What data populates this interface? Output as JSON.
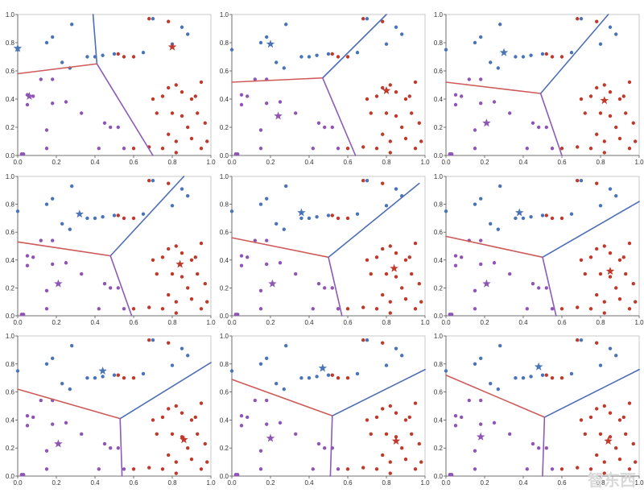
{
  "colors": {
    "blue": "#4a74b8",
    "red": "#c0392b",
    "purple": "#8e55b5",
    "boundary_red": "#cf5a5a",
    "boundary_blue": "#4e6fb5",
    "boundary_purple": "#8c5bb6",
    "axis": "#555555",
    "frame": "#bbbbbb"
  },
  "chart_data": {
    "type": "scatter",
    "grid": false,
    "xlim": [
      0,
      1
    ],
    "ylim": [
      0,
      1
    ],
    "xticks": [
      "0.0",
      "0.2",
      "0.4",
      "0.6",
      "0.8",
      "1.0"
    ],
    "yticks": [
      "0.0",
      "0.2",
      "0.4",
      "0.6",
      "0.8",
      "1.0"
    ],
    "points": {
      "blue": [
        [
          0.0,
          0.75
        ],
        [
          0.15,
          0.8
        ],
        [
          0.18,
          0.84
        ],
        [
          0.28,
          0.93
        ],
        [
          0.23,
          0.66
        ],
        [
          0.27,
          0.62
        ],
        [
          0.36,
          0.7
        ],
        [
          0.4,
          0.7
        ],
        [
          0.44,
          0.71
        ],
        [
          0.5,
          0.72
        ],
        [
          0.65,
          0.73
        ],
        [
          0.7,
          0.97
        ],
        [
          0.8,
          0.79
        ],
        [
          0.85,
          0.91
        ],
        [
          0.88,
          0.86
        ]
      ],
      "red": [
        [
          0.52,
          0.72
        ],
        [
          0.55,
          0.7
        ],
        [
          0.6,
          0.7
        ],
        [
          0.68,
          0.97
        ],
        [
          0.78,
          0.95
        ],
        [
          0.7,
          0.4
        ],
        [
          0.75,
          0.42
        ],
        [
          0.72,
          0.3
        ],
        [
          0.78,
          0.48
        ],
        [
          0.82,
          0.5
        ],
        [
          0.85,
          0.45
        ],
        [
          0.9,
          0.4
        ],
        [
          0.92,
          0.42
        ],
        [
          0.95,
          0.52
        ],
        [
          0.8,
          0.3
        ],
        [
          0.85,
          0.28
        ],
        [
          0.93,
          0.3
        ],
        [
          0.97,
          0.23
        ],
        [
          0.88,
          0.2
        ],
        [
          0.78,
          0.15
        ],
        [
          0.82,
          0.1
        ],
        [
          0.9,
          0.12
        ],
        [
          0.75,
          0.05
        ],
        [
          0.82,
          0.02
        ],
        [
          0.68,
          0.06
        ],
        [
          0.6,
          0.05
        ],
        [
          0.95,
          0.05
        ],
        [
          0.98,
          0.1
        ]
      ],
      "purple": [
        [
          0.02,
          0.01
        ],
        [
          0.03,
          0.01
        ],
        [
          0.05,
          0.43
        ],
        [
          0.08,
          0.42
        ],
        [
          0.05,
          0.36
        ],
        [
          0.12,
          0.54
        ],
        [
          0.18,
          0.54
        ],
        [
          0.18,
          0.37
        ],
        [
          0.15,
          0.18
        ],
        [
          0.25,
          0.38
        ],
        [
          0.45,
          0.23
        ],
        [
          0.48,
          0.2
        ],
        [
          0.52,
          0.2
        ],
        [
          0.15,
          0.05
        ],
        [
          0.33,
          0.3
        ],
        [
          0.42,
          0.05
        ],
        [
          0.55,
          0.05
        ]
      ]
    },
    "panels": [
      {
        "centroids": {
          "blue": [
            0.0,
            0.76
          ],
          "red": [
            0.8,
            0.77
          ],
          "purple": [
            0.06,
            0.42
          ]
        },
        "vertex": [
          0.41,
          0.65
        ],
        "ends": {
          "red": [
            0.0,
            0.58
          ],
          "blue": [
            0.39,
            1.0
          ],
          "purple": [
            0.7,
            0.0
          ]
        }
      },
      {
        "centroids": {
          "blue": [
            0.2,
            0.79
          ],
          "red": [
            0.8,
            0.46
          ],
          "purple": [
            0.24,
            0.28
          ]
        },
        "vertex": [
          0.47,
          0.55
        ],
        "ends": {
          "red": [
            0.0,
            0.52
          ],
          "blue": [
            0.8,
            1.0
          ],
          "purple": [
            0.64,
            0.0
          ]
        }
      },
      {
        "centroids": {
          "blue": [
            0.3,
            0.73
          ],
          "red": [
            0.82,
            0.39
          ],
          "purple": [
            0.21,
            0.23
          ]
        },
        "vertex": [
          0.49,
          0.44
        ],
        "ends": {
          "red": [
            0.0,
            0.52
          ],
          "blue": [
            0.84,
            1.0
          ],
          "purple": [
            0.6,
            0.0
          ]
        }
      },
      {
        "centroids": {
          "blue": [
            0.32,
            0.73
          ],
          "red": [
            0.84,
            0.37
          ],
          "purple": [
            0.21,
            0.23
          ]
        },
        "vertex": [
          0.48,
          0.43
        ],
        "ends": {
          "red": [
            0.0,
            0.53
          ],
          "blue": [
            0.86,
            1.0
          ],
          "purple": [
            0.59,
            0.0
          ]
        }
      },
      {
        "centroids": {
          "blue": [
            0.36,
            0.74
          ],
          "red": [
            0.84,
            0.34
          ],
          "purple": [
            0.21,
            0.23
          ]
        },
        "vertex": [
          0.5,
          0.42
        ],
        "ends": {
          "red": [
            0.0,
            0.56
          ],
          "blue": [
            0.97,
            0.95
          ],
          "purple": [
            0.57,
            0.0
          ]
        }
      },
      {
        "centroids": {
          "blue": [
            0.38,
            0.74
          ],
          "red": [
            0.85,
            0.32
          ],
          "purple": [
            0.21,
            0.23
          ]
        },
        "vertex": [
          0.5,
          0.42
        ],
        "ends": {
          "red": [
            0.0,
            0.57
          ],
          "blue": [
            1.0,
            0.82
          ],
          "purple": [
            0.57,
            0.0
          ]
        }
      },
      {
        "centroids": {
          "blue": [
            0.44,
            0.75
          ],
          "red": [
            0.86,
            0.26
          ],
          "purple": [
            0.21,
            0.23
          ]
        },
        "vertex": [
          0.53,
          0.41
        ],
        "ends": {
          "red": [
            0.0,
            0.62
          ],
          "blue": [
            1.0,
            0.81
          ],
          "purple": [
            0.54,
            0.0
          ]
        }
      },
      {
        "centroids": {
          "blue": [
            0.47,
            0.77
          ],
          "red": [
            0.85,
            0.25
          ],
          "purple": [
            0.2,
            0.27
          ]
        },
        "vertex": [
          0.52,
          0.43
        ],
        "ends": {
          "red": [
            0.0,
            0.69
          ],
          "blue": [
            1.0,
            0.76
          ],
          "purple": [
            0.51,
            0.0
          ]
        }
      },
      {
        "centroids": {
          "blue": [
            0.48,
            0.78
          ],
          "red": [
            0.84,
            0.25
          ],
          "purple": [
            0.18,
            0.28
          ]
        },
        "vertex": [
          0.51,
          0.42
        ],
        "ends": {
          "red": [
            0.0,
            0.72
          ],
          "blue": [
            1.0,
            0.76
          ],
          "purple": [
            0.5,
            0.0
          ]
        }
      }
    ]
  },
  "watermark": {
    "text": "智东西"
  }
}
